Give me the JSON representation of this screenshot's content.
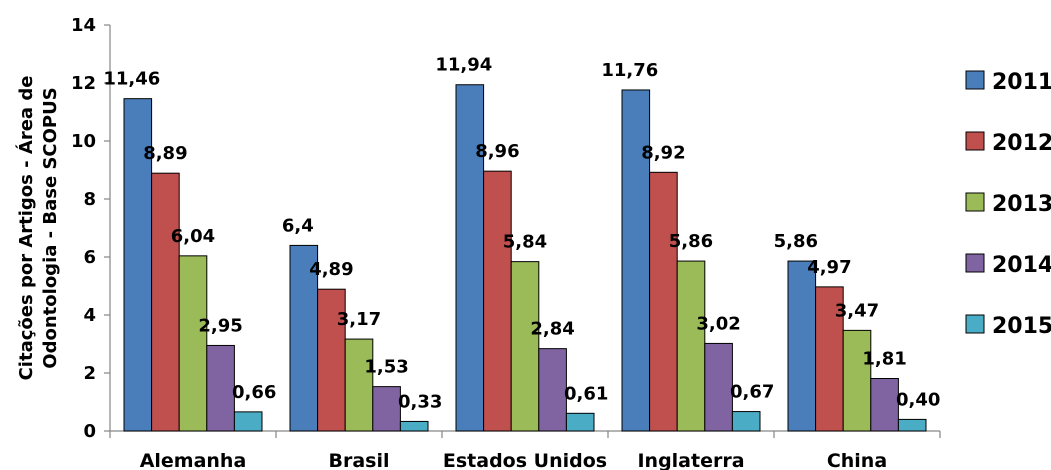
{
  "chart_data": {
    "type": "bar",
    "title": "",
    "xlabel": "",
    "ylabel_lines": [
      "Citações por Artigos - Área de",
      "Odontologia - Base SCOPUS"
    ],
    "ylim": [
      0,
      14
    ],
    "yticks": [
      0,
      2,
      4,
      6,
      8,
      10,
      12,
      14
    ],
    "grid": false,
    "legend_position": "right",
    "categories": [
      "Alemanha",
      "Brasil",
      "Estados Unidos",
      "Inglaterra",
      "China"
    ],
    "series": [
      {
        "name": "2011",
        "color": "#4a7ebb",
        "values": [
          11.46,
          6.4,
          11.94,
          11.76,
          5.86
        ],
        "labels": [
          "11,46",
          "6,4",
          "11,94",
          "11,76",
          "5,86"
        ]
      },
      {
        "name": "2012",
        "color": "#c0504d",
        "values": [
          8.89,
          4.89,
          8.96,
          8.92,
          4.97
        ],
        "labels": [
          "8,89",
          "4,89",
          "8,96",
          "8,92",
          "4,97"
        ]
      },
      {
        "name": "2013",
        "color": "#9bbb59",
        "values": [
          6.04,
          3.17,
          5.84,
          5.86,
          3.47
        ],
        "labels": [
          "6,04",
          "3,17",
          "5,84",
          "5,86",
          "3,47"
        ]
      },
      {
        "name": "2014",
        "color": "#8064a2",
        "values": [
          2.95,
          1.53,
          2.84,
          3.02,
          1.81
        ],
        "labels": [
          "2,95",
          "1,53",
          "2,84",
          "3,02",
          "1,81"
        ]
      },
      {
        "name": "2015",
        "color": "#4bacc6",
        "values": [
          0.66,
          0.33,
          0.61,
          0.67,
          0.4
        ],
        "labels": [
          "0,66",
          "0,33",
          "0,61",
          "0,67",
          "0,40"
        ]
      }
    ]
  }
}
